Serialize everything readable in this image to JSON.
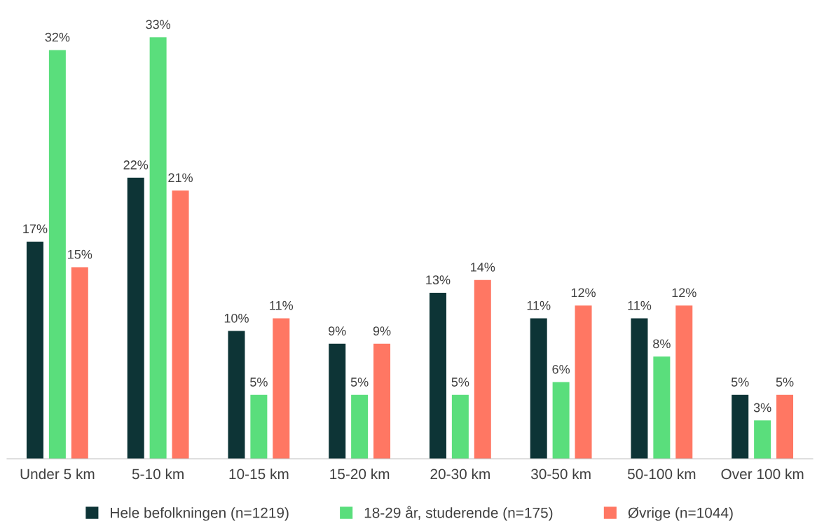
{
  "chart_data": {
    "type": "bar",
    "categories": [
      "Under 5 km",
      "5-10 km",
      "10-15 km",
      "15-20 km",
      "20-30 km",
      "30-50 km",
      "50-100 km",
      "Over 100 km"
    ],
    "series": [
      {
        "name": "Hele befolkningen (n=1219)",
        "color": "#0d3436",
        "values": [
          17,
          22,
          10,
          9,
          13,
          11,
          11,
          5
        ],
        "value_labels": [
          "17%",
          "22%",
          "10%",
          "9%",
          "13%",
          "11%",
          "11%",
          "5%"
        ]
      },
      {
        "name": "18-29 år, studerende (n=175)",
        "color": "#5ade7c",
        "values": [
          32,
          33,
          5,
          5,
          5,
          6,
          8,
          3
        ],
        "value_labels": [
          "32%",
          "33%",
          "5%",
          "5%",
          "5%",
          "6%",
          "8%",
          "3%"
        ]
      },
      {
        "name": "Øvrige (n=1044)",
        "color": "#ff7763",
        "values": [
          15,
          21,
          11,
          9,
          14,
          12,
          12,
          5
        ],
        "value_labels": [
          "15%",
          "21%",
          "11%",
          "9%",
          "14%",
          "12%",
          "12%",
          "5%"
        ]
      }
    ],
    "legend": "bottom"
  }
}
